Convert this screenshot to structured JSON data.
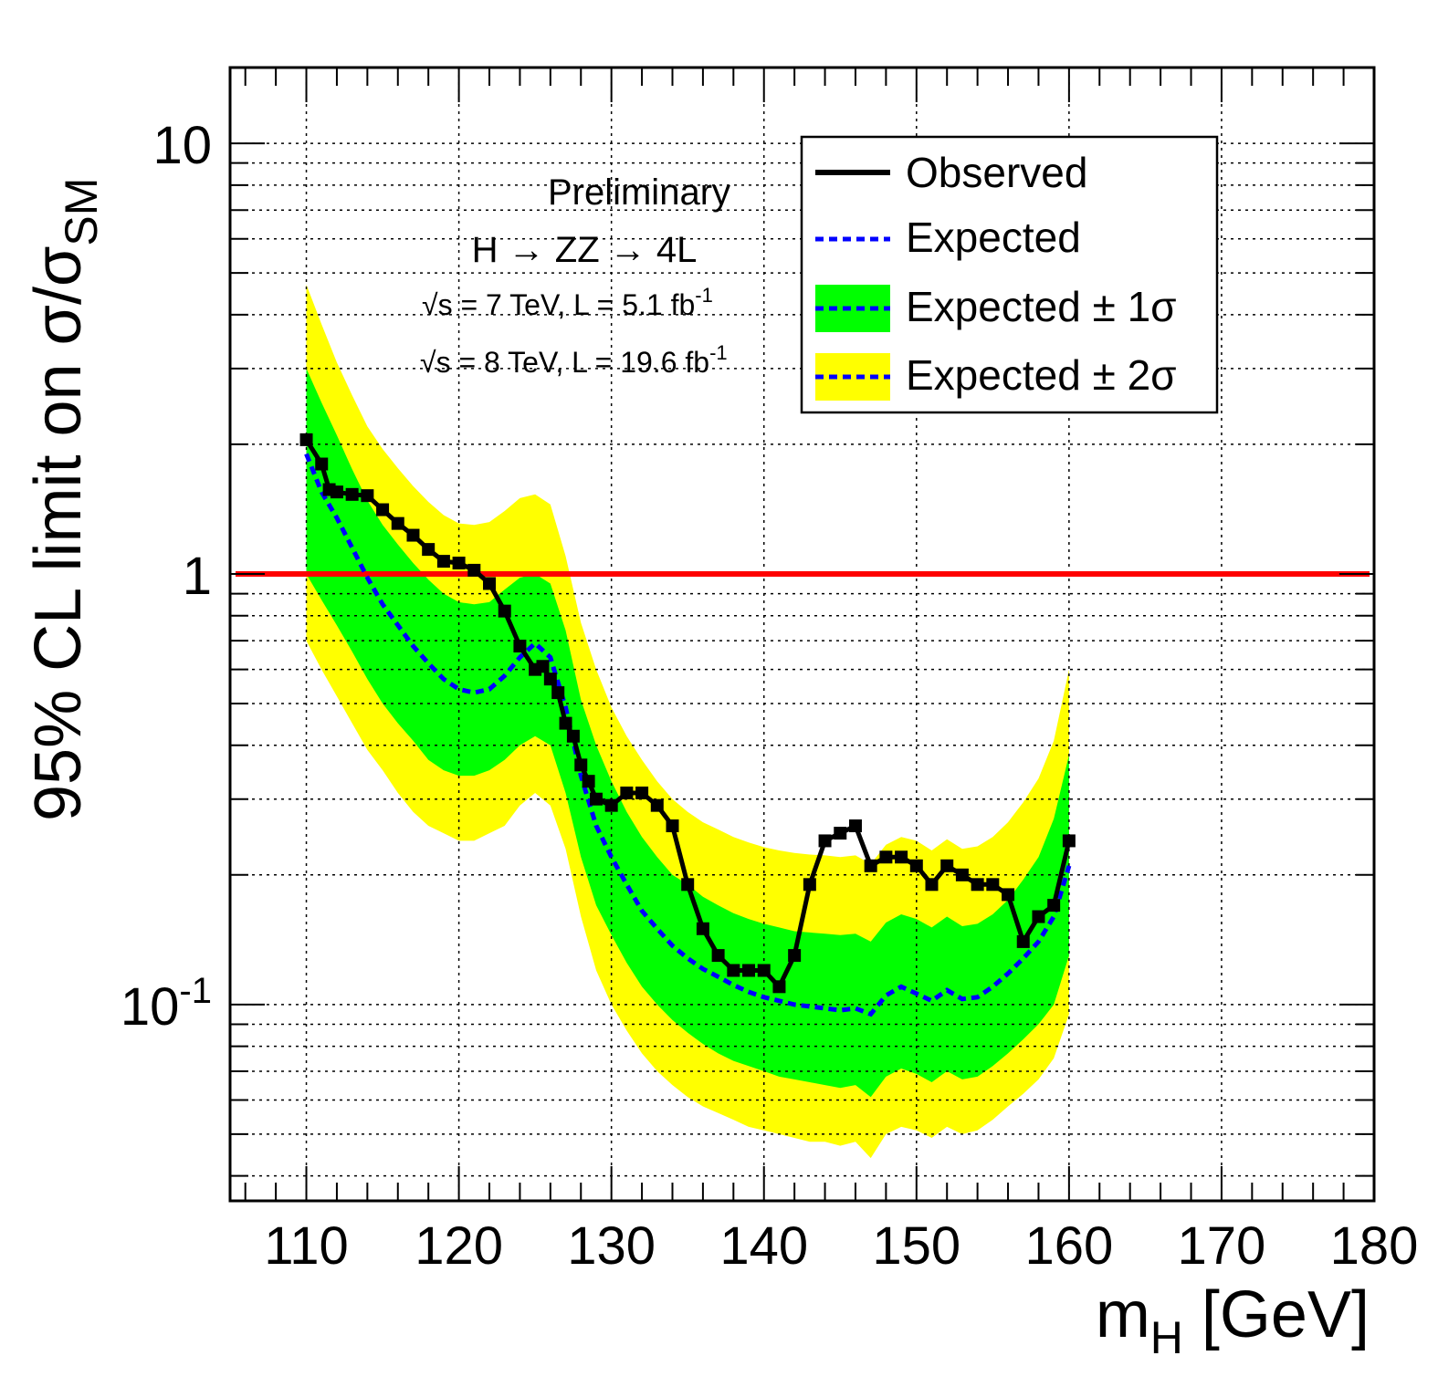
{
  "chart_data": {
    "type": "line",
    "title": "",
    "xlabel": {
      "main": "m",
      "sub": "H",
      "rest": " [GeV]"
    },
    "ylabel": {
      "main": "95% CL limit on σ/σ",
      "sub": "SM"
    },
    "x_scale": "linear",
    "y_scale": "log",
    "xlim": [
      105,
      180
    ],
    "ylim": [
      0.035,
      15
    ],
    "x_ticks": [
      "110",
      "120",
      "130",
      "140",
      "150",
      "160",
      "170",
      "180"
    ],
    "y_ticks": [
      {
        "value": 10,
        "label": "10",
        "sup": ""
      },
      {
        "value": 1,
        "label": "1",
        "sup": ""
      },
      {
        "value": 0.1,
        "label": "10",
        "sup": "-1"
      }
    ],
    "grid": true,
    "annotations": {
      "preliminary": "Preliminary",
      "channel": "H → ZZ → 4L",
      "lumi_7": {
        "sqrt": "√s = 7 TeV, L = 5.1 fb",
        "sup": "-1"
      },
      "lumi_8": {
        "sqrt": "√s = 8 TeV, L = 19.6 fb",
        "sup": "-1"
      }
    },
    "legend": {
      "position": "top-right",
      "entries": [
        {
          "label": "Observed",
          "style": "solid-black"
        },
        {
          "label": "Expected",
          "style": "dashed-blue"
        },
        {
          "label": "Expected ± 1σ",
          "style": "green-band"
        },
        {
          "label": "Expected ± 2σ",
          "style": "yellow-band"
        }
      ]
    },
    "reference_line": {
      "y": 1,
      "color": "#ff0000"
    },
    "colors": {
      "observed": "#000000",
      "expected": "#0000ff",
      "band1": "#00ff00",
      "band2": "#ffff00",
      "reference": "#ff0000"
    },
    "series": [
      {
        "name": "Observed",
        "x": [
          110,
          111,
          111.5,
          112,
          113,
          114,
          115,
          116,
          117,
          118,
          119,
          120,
          121,
          122,
          123,
          124,
          125,
          125.5,
          126,
          126.5,
          127,
          127.5,
          128,
          128.5,
          129,
          130,
          131,
          132,
          133,
          134,
          135,
          136,
          137,
          138,
          139,
          140,
          141,
          142,
          143,
          144,
          145,
          146,
          147,
          148,
          149,
          150,
          151,
          152,
          153,
          154,
          155,
          156,
          157,
          158,
          159,
          160
        ],
        "y": [
          2.05,
          1.8,
          1.57,
          1.55,
          1.53,
          1.52,
          1.41,
          1.31,
          1.23,
          1.14,
          1.07,
          1.06,
          1.02,
          0.95,
          0.82,
          0.68,
          0.6,
          0.61,
          0.57,
          0.53,
          0.45,
          0.42,
          0.36,
          0.33,
          0.3,
          0.29,
          0.31,
          0.31,
          0.29,
          0.26,
          0.19,
          0.15,
          0.13,
          0.12,
          0.12,
          0.12,
          0.11,
          0.13,
          0.19,
          0.24,
          0.25,
          0.26,
          0.21,
          0.22,
          0.22,
          0.21,
          0.19,
          0.21,
          0.2,
          0.19,
          0.19,
          0.18,
          0.14,
          0.16,
          0.17,
          0.24
        ]
      },
      {
        "name": "Expected",
        "x": [
          110,
          111,
          112,
          113,
          114,
          115,
          116,
          117,
          118,
          119,
          120,
          121,
          122,
          123,
          124,
          125,
          126,
          127,
          128,
          129,
          130,
          131,
          132,
          133,
          134,
          135,
          136,
          137,
          138,
          139,
          140,
          141,
          142,
          143,
          144,
          145,
          146,
          147,
          148,
          149,
          150,
          151,
          152,
          153,
          154,
          155,
          156,
          157,
          158,
          159,
          160
        ],
        "y": [
          1.9,
          1.55,
          1.35,
          1.15,
          0.98,
          0.85,
          0.76,
          0.68,
          0.62,
          0.57,
          0.54,
          0.53,
          0.54,
          0.58,
          0.64,
          0.69,
          0.64,
          0.49,
          0.34,
          0.26,
          0.22,
          0.19,
          0.165,
          0.15,
          0.137,
          0.128,
          0.121,
          0.116,
          0.111,
          0.107,
          0.104,
          0.102,
          0.1,
          0.099,
          0.098,
          0.097,
          0.098,
          0.095,
          0.105,
          0.11,
          0.106,
          0.102,
          0.108,
          0.103,
          0.104,
          0.11,
          0.118,
          0.128,
          0.14,
          0.16,
          0.21
        ]
      }
    ],
    "bands": {
      "x": [
        110,
        111,
        112,
        113,
        114,
        115,
        116,
        117,
        118,
        119,
        120,
        121,
        122,
        123,
        124,
        125,
        126,
        127,
        128,
        129,
        130,
        131,
        132,
        133,
        134,
        135,
        136,
        137,
        138,
        139,
        140,
        141,
        142,
        143,
        144,
        145,
        146,
        147,
        148,
        149,
        150,
        151,
        152,
        153,
        154,
        155,
        156,
        157,
        158,
        159,
        160
      ],
      "one_sigma_low": [
        1.0,
        0.87,
        0.76,
        0.66,
        0.57,
        0.5,
        0.45,
        0.41,
        0.37,
        0.35,
        0.34,
        0.34,
        0.35,
        0.37,
        0.4,
        0.42,
        0.4,
        0.31,
        0.22,
        0.17,
        0.145,
        0.125,
        0.11,
        0.1,
        0.092,
        0.086,
        0.081,
        0.077,
        0.074,
        0.072,
        0.07,
        0.068,
        0.067,
        0.066,
        0.065,
        0.064,
        0.065,
        0.061,
        0.068,
        0.071,
        0.069,
        0.066,
        0.07,
        0.067,
        0.068,
        0.072,
        0.077,
        0.083,
        0.09,
        0.1,
        0.13
      ],
      "one_sigma_high": [
        3.0,
        2.5,
        2.1,
        1.75,
        1.48,
        1.3,
        1.17,
        1.06,
        0.97,
        0.9,
        0.86,
        0.85,
        0.86,
        0.92,
        0.98,
        1.0,
        0.95,
        0.74,
        0.51,
        0.4,
        0.33,
        0.28,
        0.245,
        0.22,
        0.2,
        0.19,
        0.178,
        0.17,
        0.163,
        0.158,
        0.154,
        0.151,
        0.148,
        0.147,
        0.146,
        0.145,
        0.146,
        0.14,
        0.155,
        0.162,
        0.158,
        0.151,
        0.16,
        0.152,
        0.154,
        0.162,
        0.175,
        0.195,
        0.22,
        0.27,
        0.38
      ],
      "two_sigma_low": [
        0.7,
        0.6,
        0.52,
        0.45,
        0.39,
        0.35,
        0.31,
        0.28,
        0.26,
        0.25,
        0.24,
        0.24,
        0.25,
        0.26,
        0.29,
        0.31,
        0.29,
        0.23,
        0.16,
        0.12,
        0.1,
        0.087,
        0.077,
        0.07,
        0.065,
        0.061,
        0.058,
        0.056,
        0.054,
        0.052,
        0.051,
        0.05,
        0.049,
        0.048,
        0.048,
        0.047,
        0.048,
        0.044,
        0.05,
        0.052,
        0.051,
        0.049,
        0.052,
        0.05,
        0.051,
        0.054,
        0.058,
        0.062,
        0.067,
        0.075,
        0.095
      ],
      "two_sigma_high": [
        4.7,
        3.8,
        3.1,
        2.6,
        2.2,
        1.95,
        1.76,
        1.6,
        1.47,
        1.37,
        1.31,
        1.3,
        1.32,
        1.4,
        1.5,
        1.53,
        1.45,
        1.1,
        0.77,
        0.6,
        0.49,
        0.42,
        0.37,
        0.33,
        0.3,
        0.28,
        0.265,
        0.255,
        0.245,
        0.238,
        0.232,
        0.228,
        0.225,
        0.223,
        0.222,
        0.22,
        0.222,
        0.212,
        0.235,
        0.245,
        0.24,
        0.228,
        0.242,
        0.23,
        0.233,
        0.245,
        0.265,
        0.295,
        0.335,
        0.41,
        0.6
      ]
    }
  }
}
